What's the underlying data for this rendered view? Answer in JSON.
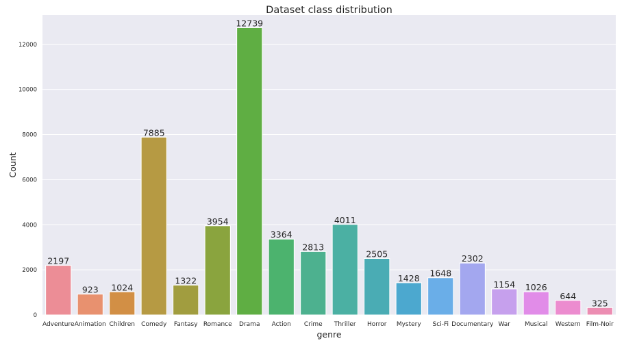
{
  "chart_data": {
    "type": "bar",
    "title": "Dataset class distribution",
    "xlabel": "genre",
    "ylabel": "Count",
    "ylim": [
      0,
      13300
    ],
    "yticks": [
      0,
      2000,
      4000,
      6000,
      8000,
      10000,
      12000
    ],
    "grid": "horizontal",
    "categories": [
      "Adventure",
      "Animation",
      "Children",
      "Comedy",
      "Fantasy",
      "Romance",
      "Drama",
      "Action",
      "Crime",
      "Thriller",
      "Horror",
      "Mystery",
      "Sci-Fi",
      "Documentary",
      "War",
      "Musical",
      "Western",
      "Film-Noir"
    ],
    "values": [
      2197,
      923,
      1024,
      7885,
      1322,
      3954,
      12739,
      3364,
      2813,
      4011,
      2505,
      1428,
      1648,
      2302,
      1154,
      1026,
      644,
      325
    ],
    "colors": [
      "#ec8d96",
      "#e8916f",
      "#d28f45",
      "#b69a43",
      "#a19d3f",
      "#8aa43e",
      "#5fae43",
      "#4cb36e",
      "#4db18f",
      "#4bb0a3",
      "#4aacb4",
      "#4ca8cf",
      "#6aaee8",
      "#a3a7ef",
      "#c6a0ed",
      "#e18ce8",
      "#ec8ccf",
      "#ec8db2"
    ]
  }
}
